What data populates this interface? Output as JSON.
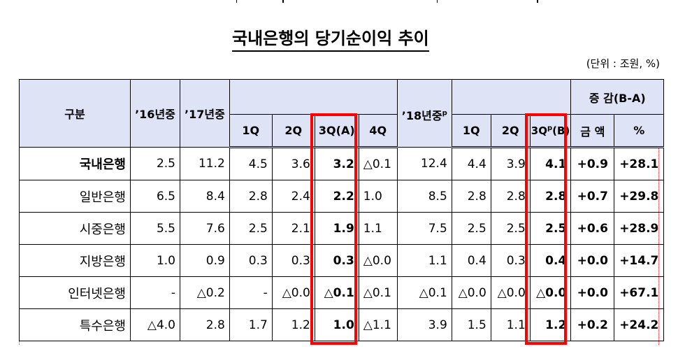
{
  "title": "국내은행의 당기순이익 추이",
  "unit_note": "(단위 : 조원, %)",
  "table": {
    "header": {
      "category": "구분",
      "y2016": "’16년중",
      "y2017": "’17년중",
      "q2017": [
        "1Q",
        "2Q",
        "3Q(A)",
        "4Q"
      ],
      "y2018": "’18년중",
      "y2018_sup": "p",
      "q2018": [
        "1Q",
        "2Q"
      ],
      "q2018_3q_prefix": "3Q",
      "q2018_3q_sup": "p",
      "q2018_3q_suffix": "(B)",
      "change_group": "증 감(B-A)",
      "change_amount": "금 액",
      "change_pct": "%"
    },
    "rows": [
      {
        "label": "국내은행",
        "level": 0,
        "y2016": "2.5",
        "y2017": "11.2",
        "q1_17": "4.5",
        "q2_17": "3.6",
        "q3_17": "3.2",
        "q4_17": "△0.1",
        "y2018": "12.4",
        "q1_18": "4.4",
        "q2_18": "3.9",
        "q3_18": "4.1",
        "chg_amt": "+0.9",
        "chg_pct": "+28.1"
      },
      {
        "label": "일반은행",
        "level": 1,
        "y2016": "6.5",
        "y2017": "8.4",
        "q1_17": "2.8",
        "q2_17": "2.4",
        "q3_17": "2.2",
        "q4_17": "1.0",
        "y2018": "8.5",
        "q1_18": "2.8",
        "q2_18": "2.8",
        "q3_18": "2.8",
        "chg_amt": "+0.7",
        "chg_pct": "+29.8"
      },
      {
        "label": "시중은행",
        "level": 2,
        "y2016": "5.5",
        "y2017": "7.6",
        "q1_17": "2.5",
        "q2_17": "2.1",
        "q3_17": "1.9",
        "q4_17": "1.1",
        "y2018": "7.5",
        "q1_18": "2.5",
        "q2_18": "2.5",
        "q3_18": "2.5",
        "chg_amt": "+0.6",
        "chg_pct": "+28.9"
      },
      {
        "label": "지방은행",
        "level": 2,
        "y2016": "1.0",
        "y2017": "0.9",
        "q1_17": "0.3",
        "q2_17": "0.3",
        "q3_17": "0.3",
        "q4_17": "△0.0",
        "y2018": "1.1",
        "q1_18": "0.4",
        "q2_18": "0.3",
        "q3_18": "0.4",
        "chg_amt": "+0.0",
        "chg_pct": "+14.7"
      },
      {
        "label": "인터넷은행",
        "level": 2,
        "y2016": "-",
        "y2017": "△0.2",
        "q1_17": "-",
        "q2_17": "△0.0",
        "q3_17": "△0.1",
        "q4_17": "△0.1",
        "y2018": "△0.1",
        "q1_18": "△0.0",
        "q2_18": "△0.0",
        "q3_18": "△0.0",
        "chg_amt": "+0.0",
        "chg_pct": "+67.1"
      },
      {
        "label": "특수은행",
        "level": 1,
        "y2016": "△4.0",
        "y2017": "2.8",
        "q1_17": "1.7",
        "q2_17": "1.2",
        "q3_17": "1.0",
        "q4_17": "△1.1",
        "y2018": "3.9",
        "q1_18": "1.5",
        "q2_18": "1.1",
        "q3_18": "1.2",
        "chg_amt": "+0.2",
        "chg_pct": "+24.2"
      }
    ]
  },
  "highlight_color": "#ff0000",
  "header_fill": "#dfe3f6"
}
